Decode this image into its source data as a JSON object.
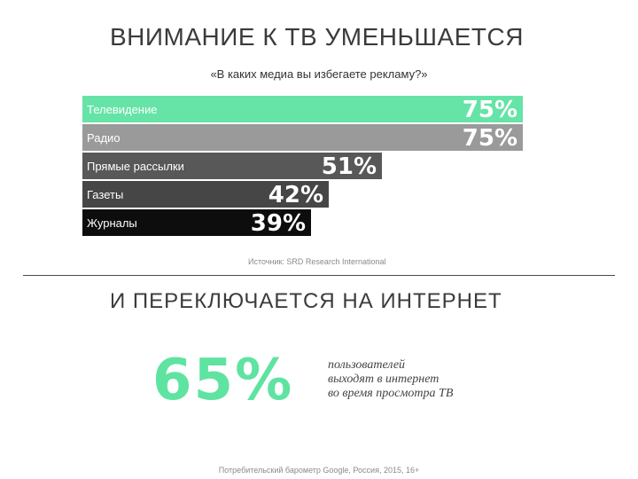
{
  "header": {
    "title": "ВНИМАНИЕ К ТВ УМЕНЬШАЕТСЯ",
    "subtitle": "«В каких медиа вы избегаете рекламу?»"
  },
  "chart_data": {
    "type": "bar",
    "orientation": "horizontal",
    "categories": [
      "Телевидение",
      "Радио",
      "Прямые рассылки",
      "Газеты",
      "Журналы"
    ],
    "values": [
      75,
      75,
      51,
      42,
      39
    ],
    "value_labels": [
      "75%",
      "75%",
      "51%",
      "42%",
      "39%"
    ],
    "colors": [
      "#66e3a7",
      "#9a9a9a",
      "#585858",
      "#464646",
      "#0d0d0d"
    ],
    "title": "«В каких медиа вы избегаете рекламу?»",
    "xlim": [
      0,
      75
    ],
    "grid": false
  },
  "source1": "Источник: SRD Research International",
  "section2": {
    "title": "И ПЕРЕКЛЮЧАЕТСЯ НА ИНТЕРНЕТ",
    "stat_value": "65%",
    "stat_lines": [
      "пользователей",
      "выходят в интернет",
      "во время просмотра ТВ"
    ],
    "source": "Потребительский барометр Google, Россия, 2015, 16+"
  },
  "colors": {
    "accent_green": "#5fe3a1",
    "text_dark": "#3b3b3b"
  }
}
